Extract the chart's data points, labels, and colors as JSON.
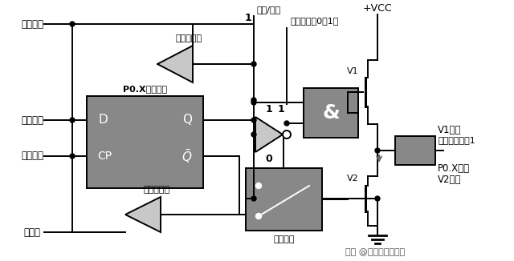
{
  "bg_color": "#ffffff",
  "dark_gray": "#888888",
  "light_gray": "#c8c8c8",
  "black": "#000000",
  "white": "#ffffff",
  "figsize": [
    6.4,
    3.26
  ],
  "dpi": 100,
  "watermark": "头条 @电子工程师小李",
  "read_latch": "读锁存器",
  "internal_bus": "内部总线",
  "write_latch": "写锁存器",
  "read_pin": "读引脚",
  "addr_data": "地址/数据",
  "ctrl_signal": "控制信号（0、1）",
  "input_buf": "输入缓冲器",
  "ff_label": "P0.X脚锁存器",
  "mux_label": "多路开关",
  "vcc": "+VCC",
  "v1_on": "V1导通",
  "out_high": "输出为高电平1",
  "p0x_pin": "P0.X引脚",
  "v2_off": "V2截止",
  "v1": "V1",
  "v2": "V2",
  "and_sym": "&"
}
